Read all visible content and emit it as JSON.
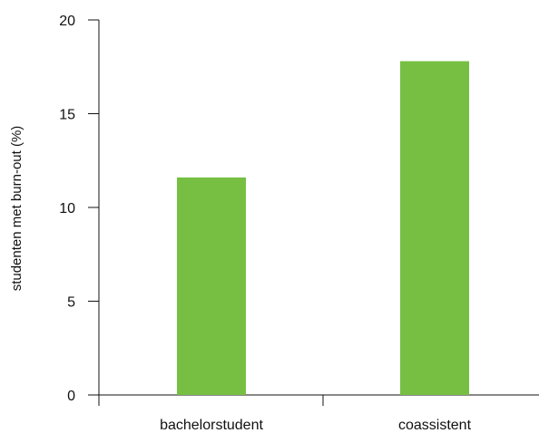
{
  "chart_data": {
    "type": "bar",
    "categories": [
      "bachelorstudent",
      "coassistent"
    ],
    "values": [
      11.6,
      17.8
    ],
    "title": "",
    "xlabel": "",
    "ylabel": "studenten met burn-out (%)",
    "ylim": [
      0,
      20
    ],
    "yticks": [
      0,
      5,
      10,
      15,
      20
    ],
    "grid": false,
    "legend": "none",
    "bar_color": "#76bf43",
    "axis_color": "#111111"
  }
}
